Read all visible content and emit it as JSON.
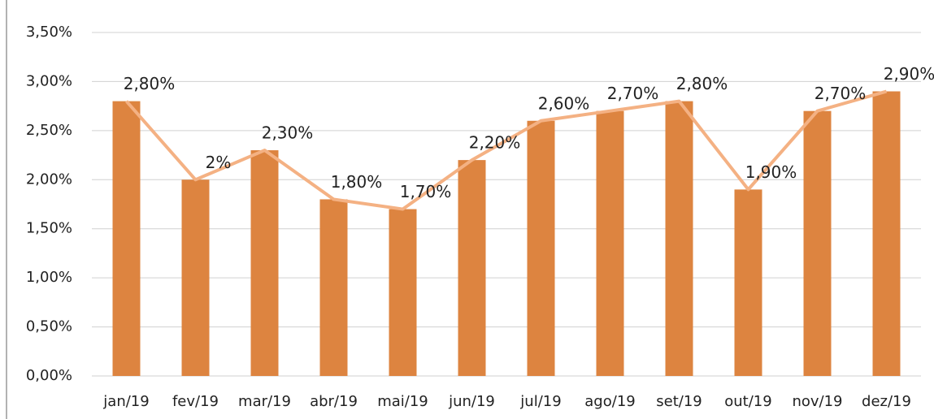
{
  "chart_data": {
    "type": "bar",
    "categories": [
      "jan/19",
      "fev/19",
      "mar/19",
      "abr/19",
      "mai/19",
      "jun/19",
      "jul/19",
      "ago/19",
      "set/19",
      "out/19",
      "nov/19",
      "dez/19"
    ],
    "values": [
      2.8,
      2,
      2.3,
      1.8,
      1.7,
      2.2,
      2.6,
      2.7,
      2.8,
      1.9,
      2.7,
      2.9
    ],
    "value_labels": [
      "2,80%",
      "2%",
      "2,30%",
      "1,80%",
      "1,70%",
      "2,20%",
      "2,60%",
      "2,70%",
      "2,80%",
      "1,90%",
      "2,70%",
      "2,90%"
    ],
    "color": "#dd8440",
    "line_color": "#f4b183",
    "ylim": [
      0,
      3.5
    ],
    "yticks": [
      {
        "value": 0,
        "label": "0,00%"
      },
      {
        "value": 0.5,
        "label": "0,50%"
      },
      {
        "value": 1,
        "label": "1,00%"
      },
      {
        "value": 1.5,
        "label": "1,50%"
      },
      {
        "value": 2,
        "label": "2,00%"
      },
      {
        "value": 2.5,
        "label": "2,50%"
      },
      {
        "value": 3,
        "label": "3,00%"
      },
      {
        "value": 3.5,
        "label": "3,50%"
      }
    ],
    "grid": true
  }
}
